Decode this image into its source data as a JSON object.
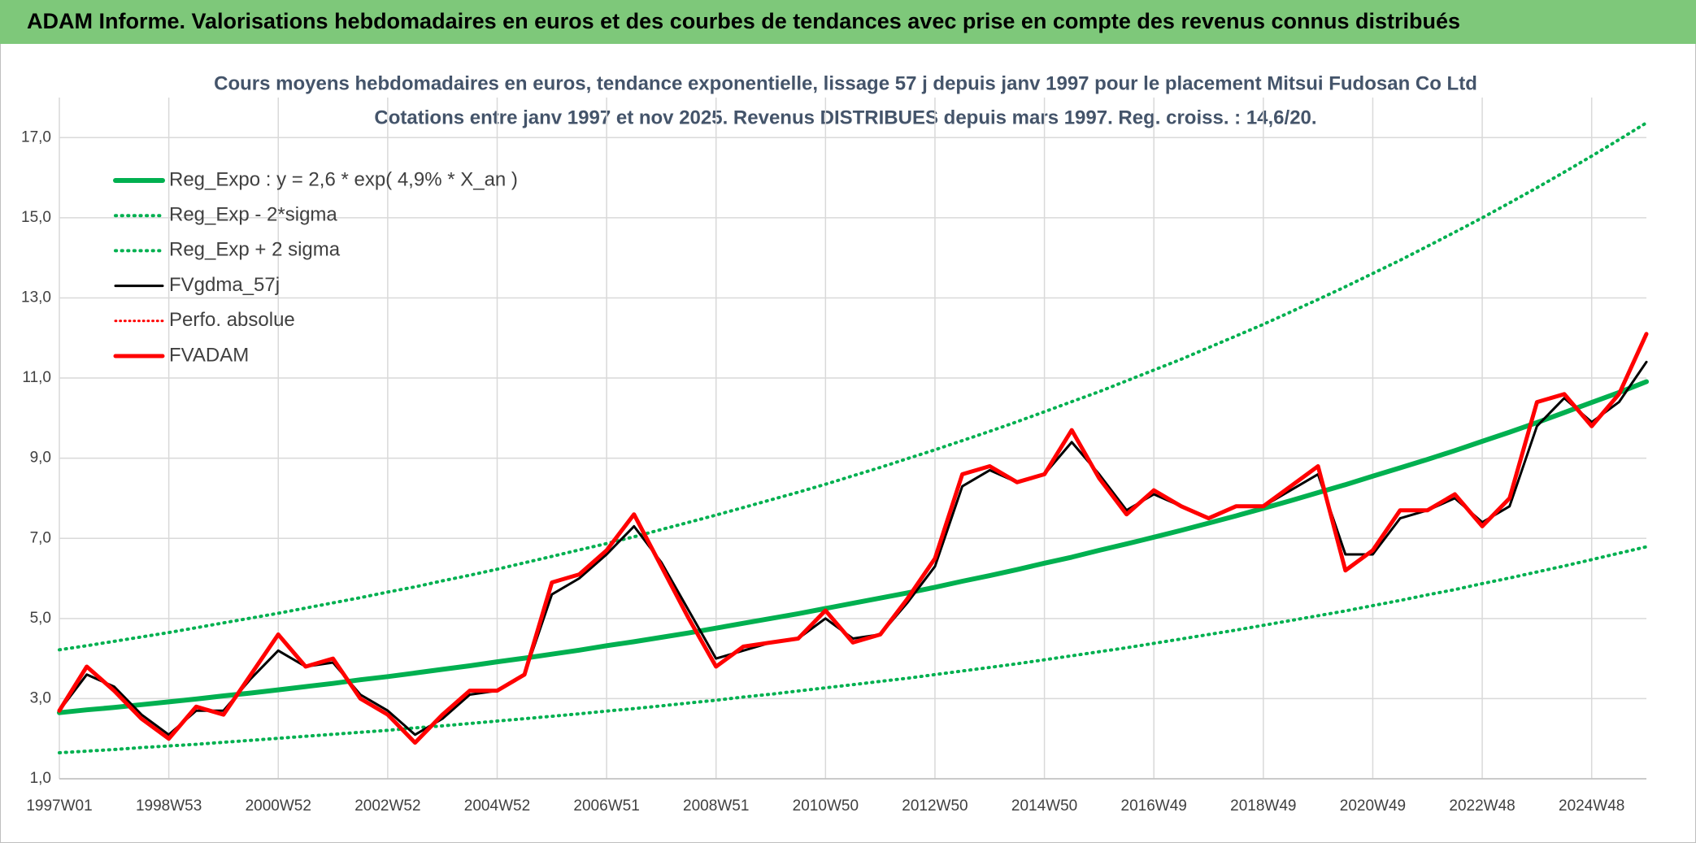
{
  "header": {
    "title": "ADAM Informe. Valorisations hebdomadaires en euros et des courbes de tendances avec prise en compte des revenus connus distribués"
  },
  "chart_data": {
    "type": "line",
    "title": "Cours moyens hebdomadaires en euros, tendance exponentielle, lissage 57 j depuis janv 1997 pour le placement Mitsui Fudosan Co Ltd",
    "subtitle": "Cotations entre janv 1997 et nov 2025. Revenus DISTRIBUES depuis mars 1997. Reg. croiss. : 14,6/20.",
    "categories": [
      "1997W01",
      null,
      null,
      null,
      "1998W53",
      null,
      null,
      null,
      "2000W52",
      null,
      null,
      null,
      "2002W52",
      null,
      null,
      null,
      "2004W52",
      null,
      null,
      null,
      "2006W51",
      null,
      null,
      null,
      "2008W51",
      null,
      null,
      null,
      "2010W50",
      null,
      null,
      null,
      "2012W50",
      null,
      null,
      null,
      "2014W50",
      null,
      null,
      null,
      "2016W49",
      null,
      null,
      null,
      "2018W49",
      null,
      null,
      null,
      "2020W49",
      null,
      null,
      null,
      "2022W48",
      null,
      null,
      null,
      "2024W48",
      null,
      null
    ],
    "ylim": [
      1,
      18
    ],
    "yticks": [
      {
        "value": 1,
        "label": "1,0"
      },
      {
        "value": 3,
        "label": "3,0"
      },
      {
        "value": 5,
        "label": "5,0"
      },
      {
        "value": 7,
        "label": "7,0"
      },
      {
        "value": 9,
        "label": "9,0"
      },
      {
        "value": 11,
        "label": "11,0"
      },
      {
        "value": 13,
        "label": "13,0"
      },
      {
        "value": 15,
        "label": "15,0"
      },
      {
        "value": 17,
        "label": "17,0"
      }
    ],
    "grid": true,
    "legend": "top-left",
    "series": [
      {
        "name": "Reg_Expo : y = 2,6 * exp( 4,9% *  X_an )",
        "color": "#00b050",
        "style": "solid",
        "width": 6,
        "values": [
          2.65,
          2.72,
          2.78,
          2.85,
          2.92,
          2.99,
          3.07,
          3.14,
          3.22,
          3.3,
          3.38,
          3.47,
          3.55,
          3.64,
          3.73,
          3.82,
          3.92,
          4.01,
          4.11,
          4.21,
          4.32,
          4.42,
          4.53,
          4.64,
          4.76,
          4.88,
          5.0,
          5.12,
          5.25,
          5.38,
          5.51,
          5.64,
          5.78,
          5.93,
          6.07,
          6.22,
          6.38,
          6.53,
          6.7,
          6.86,
          7.03,
          7.2,
          7.38,
          7.56,
          7.75,
          7.94,
          8.14,
          8.34,
          8.55,
          8.76,
          8.97,
          9.19,
          9.42,
          9.65,
          9.89,
          10.14,
          10.39,
          10.64,
          10.91
        ]
      },
      {
        "name": "Reg_Exp - 2*sigma",
        "color": "#00b050",
        "style": "dotted",
        "width": 4,
        "values": [
          1.65,
          1.69,
          1.73,
          1.78,
          1.82,
          1.86,
          1.91,
          1.96,
          2.01,
          2.06,
          2.11,
          2.16,
          2.21,
          2.27,
          2.32,
          2.38,
          2.44,
          2.5,
          2.56,
          2.62,
          2.69,
          2.75,
          2.82,
          2.89,
          2.96,
          3.04,
          3.11,
          3.19,
          3.27,
          3.35,
          3.43,
          3.51,
          3.6,
          3.69,
          3.78,
          3.87,
          3.97,
          4.07,
          4.17,
          4.27,
          4.38,
          4.49,
          4.6,
          4.71,
          4.83,
          4.95,
          5.07,
          5.19,
          5.32,
          5.45,
          5.59,
          5.72,
          5.87,
          6.01,
          6.16,
          6.31,
          6.47,
          6.63,
          6.79
        ]
      },
      {
        "name": "Reg_Exp + 2 sigma",
        "color": "#00b050",
        "style": "dotted",
        "width": 4,
        "values": [
          4.22,
          4.32,
          4.43,
          4.54,
          4.65,
          4.77,
          4.89,
          5.01,
          5.13,
          5.26,
          5.39,
          5.52,
          5.66,
          5.79,
          5.94,
          6.08,
          6.23,
          6.39,
          6.55,
          6.71,
          6.87,
          7.04,
          7.22,
          7.4,
          7.58,
          7.77,
          7.96,
          8.15,
          8.35,
          8.56,
          8.77,
          8.99,
          9.21,
          9.44,
          9.67,
          9.91,
          10.16,
          10.41,
          10.66,
          10.93,
          11.2,
          11.47,
          11.76,
          12.05,
          12.34,
          12.65,
          12.96,
          13.28,
          13.61,
          13.94,
          14.29,
          14.64,
          15.0,
          15.37,
          15.75,
          16.14,
          16.54,
          16.95,
          17.37
        ]
      },
      {
        "name": "FVgdma_57j",
        "color": "#000000",
        "style": "solid",
        "width": 3,
        "values": [
          2.7,
          3.6,
          3.3,
          2.6,
          2.1,
          2.7,
          2.7,
          3.5,
          4.2,
          3.8,
          3.9,
          3.1,
          2.7,
          2.1,
          2.5,
          3.1,
          3.2,
          3.6,
          5.6,
          6.0,
          6.6,
          7.3,
          6.4,
          5.2,
          4.0,
          4.2,
          4.4,
          4.5,
          5.0,
          4.5,
          4.6,
          5.4,
          6.3,
          8.3,
          8.7,
          8.4,
          8.6,
          9.4,
          8.6,
          7.7,
          8.1,
          7.8,
          7.5,
          7.8,
          7.8,
          8.2,
          8.6,
          6.6,
          6.6,
          7.5,
          7.7,
          8.0,
          7.4,
          7.8,
          9.8,
          10.5,
          9.9,
          10.4,
          11.4
        ]
      },
      {
        "name": "Perfo. absolue",
        "color": "#ff0000",
        "style": "dotted",
        "width": 3,
        "values": [
          null,
          null,
          null,
          null,
          null,
          null,
          null,
          null,
          null,
          null,
          null,
          null,
          null,
          null,
          null,
          null,
          null,
          null,
          null,
          null,
          null,
          null,
          null,
          null,
          null,
          null,
          null,
          null,
          null,
          null,
          null,
          null,
          null,
          null,
          null,
          null,
          null,
          null,
          null,
          null,
          null,
          null,
          null,
          null,
          null,
          null,
          null,
          null,
          null,
          null,
          null,
          null,
          null,
          null,
          null,
          null,
          null,
          null,
          null
        ]
      },
      {
        "name": "FVADAM",
        "color": "#ff0000",
        "style": "solid",
        "width": 5,
        "values": [
          2.7,
          3.8,
          3.2,
          2.5,
          2.0,
          2.8,
          2.6,
          3.6,
          4.6,
          3.8,
          4.0,
          3.0,
          2.6,
          1.9,
          2.6,
          3.2,
          3.2,
          3.6,
          5.9,
          6.1,
          6.7,
          7.6,
          6.3,
          5.0,
          3.8,
          4.3,
          4.4,
          4.5,
          5.2,
          4.4,
          4.6,
          5.5,
          6.5,
          8.6,
          8.8,
          8.4,
          8.6,
          9.7,
          8.5,
          7.6,
          8.2,
          7.8,
          7.5,
          7.8,
          7.8,
          8.3,
          8.8,
          6.2,
          6.7,
          7.7,
          7.7,
          8.1,
          7.3,
          8.0,
          10.4,
          10.6,
          9.8,
          10.6,
          12.1
        ]
      }
    ]
  }
}
